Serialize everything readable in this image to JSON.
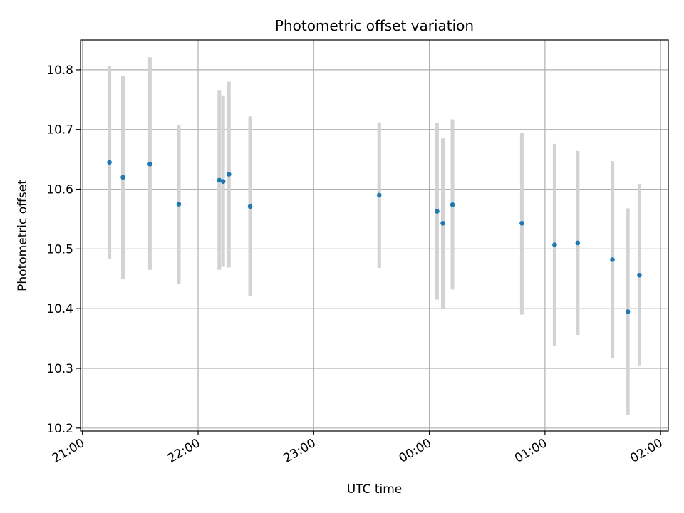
{
  "chart_data": {
    "type": "scatter",
    "title": "Photometric offset variation",
    "xlabel": "UTC time",
    "ylabel": "Photometric offset",
    "x_axis_kind": "time",
    "xlim": [
      "20:59",
      "02:04"
    ],
    "ylim": [
      10.195,
      10.85
    ],
    "grid": true,
    "x_ticks": [
      "21:00",
      "22:00",
      "23:00",
      "00:00",
      "01:00",
      "02:00"
    ],
    "y_ticks": [
      10.2,
      10.3,
      10.4,
      10.5,
      10.6,
      10.7,
      10.8
    ],
    "marker_color": "#1f77b4",
    "errorbar_color": "#d3d3d3",
    "series": [
      {
        "points": [
          {
            "x": "21:14",
            "y": 10.645,
            "yerr_low": 10.483,
            "yerr_high": 10.807
          },
          {
            "x": "21:21",
            "y": 10.62,
            "yerr_low": 10.449,
            "yerr_high": 10.789
          },
          {
            "x": "21:35",
            "y": 10.642,
            "yerr_low": 10.465,
            "yerr_high": 10.821
          },
          {
            "x": "21:50",
            "y": 10.575,
            "yerr_low": 10.442,
            "yerr_high": 10.707
          },
          {
            "x": "22:11",
            "y": 10.615,
            "yerr_low": 10.465,
            "yerr_high": 10.765
          },
          {
            "x": "22:13",
            "y": 10.613,
            "yerr_low": 10.47,
            "yerr_high": 10.756
          },
          {
            "x": "22:16",
            "y": 10.625,
            "yerr_low": 10.469,
            "yerr_high": 10.78
          },
          {
            "x": "22:27",
            "y": 10.571,
            "yerr_low": 10.421,
            "yerr_high": 10.722
          },
          {
            "x": "23:34",
            "y": 10.59,
            "yerr_low": 10.468,
            "yerr_high": 10.712
          },
          {
            "x": "00:04",
            "y": 10.563,
            "yerr_low": 10.415,
            "yerr_high": 10.711
          },
          {
            "x": "00:07",
            "y": 10.543,
            "yerr_low": 10.4,
            "yerr_high": 10.685
          },
          {
            "x": "00:12",
            "y": 10.574,
            "yerr_low": 10.432,
            "yerr_high": 10.717
          },
          {
            "x": "00:48",
            "y": 10.543,
            "yerr_low": 10.39,
            "yerr_high": 10.694
          },
          {
            "x": "01:05",
            "y": 10.507,
            "yerr_low": 10.337,
            "yerr_high": 10.676
          },
          {
            "x": "01:17",
            "y": 10.51,
            "yerr_low": 10.356,
            "yerr_high": 10.664
          },
          {
            "x": "01:35",
            "y": 10.482,
            "yerr_low": 10.317,
            "yerr_high": 10.647
          },
          {
            "x": "01:43",
            "y": 10.395,
            "yerr_low": 10.222,
            "yerr_high": 10.568
          },
          {
            "x": "01:49",
            "y": 10.456,
            "yerr_low": 10.305,
            "yerr_high": 10.609
          }
        ]
      }
    ]
  }
}
